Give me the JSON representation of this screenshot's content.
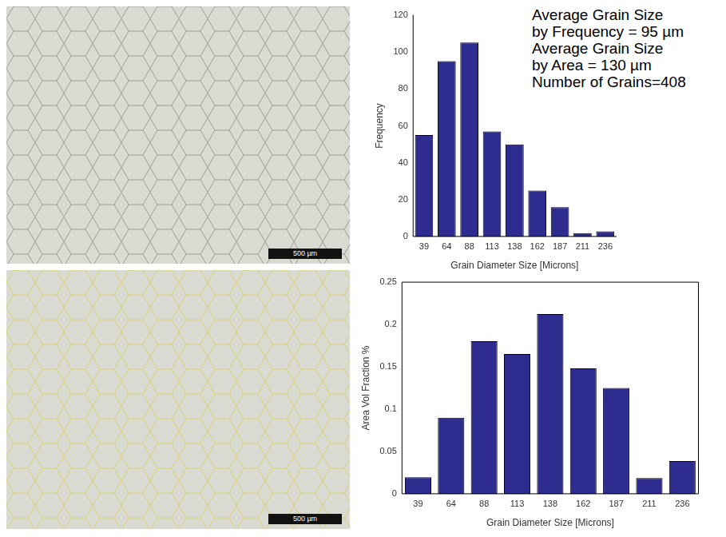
{
  "chart_data": [
    {
      "type": "bar",
      "categories": [
        39,
        64,
        88,
        113,
        138,
        162,
        187,
        211,
        236
      ],
      "values": [
        55,
        95,
        105,
        57,
        50,
        25,
        16,
        2,
        3
      ],
      "color": "#2e2d8f",
      "x_label": "Grain Diameter Size [Microns]",
      "y_label": "Frequency",
      "ylim": [
        0,
        120
      ],
      "yticks": [
        0,
        20,
        40,
        60,
        80,
        100,
        120
      ],
      "grid": false
    },
    {
      "type": "bar",
      "categories": [
        39,
        64,
        88,
        113,
        138,
        162,
        187,
        211,
        236
      ],
      "values": [
        0.02,
        0.09,
        0.18,
        0.165,
        0.212,
        0.148,
        0.125,
        0.019,
        0.039
      ],
      "color": "#2e2d8f",
      "x_label": "Grain Diameter Size [Microns]",
      "y_label": "Area Vol Fraction %",
      "ylim": [
        0,
        0.25
      ],
      "yticks": [
        0,
        0.05,
        0.1,
        0.15,
        0.2,
        0.25
      ],
      "grid": false
    }
  ],
  "text_box": [
    "Average Grain Size",
    "by Frequency = 95 µm",
    "Average Grain Size",
    "by Area = 130 µm",
    "Number of Grains=408"
  ],
  "micrographs": [
    {
      "scale_bar": "500 µm"
    },
    {
      "scale_bar": "500 µm"
    }
  ]
}
